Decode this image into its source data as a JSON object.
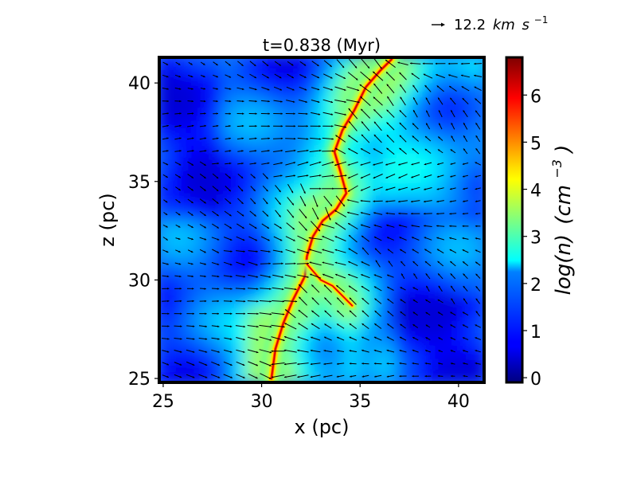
{
  "chart_data": {
    "type": "heatmap",
    "title": "t=0.838 (Myr)",
    "xlabel": "x (pc)",
    "ylabel": "z (pc)",
    "xlim": [
      24.8,
      41.3
    ],
    "ylim": [
      24.8,
      41.3
    ],
    "x_ticks": [
      25,
      30,
      35,
      40
    ],
    "y_ticks": [
      25,
      30,
      35,
      40
    ],
    "x_tick_labels": [
      "25",
      "30",
      "35",
      "40"
    ],
    "y_tick_labels": [
      "25",
      "30",
      "35",
      "40"
    ],
    "colorbar": {
      "label_main": "log(n)",
      "label_unit_base": "(cm",
      "label_unit_exp": "−3",
      "label_close": ")",
      "range": [
        -0.1,
        6.8
      ],
      "ticks": [
        0,
        1,
        2,
        3,
        4,
        5,
        6
      ],
      "tick_labels": [
        "0",
        "1",
        "2",
        "3",
        "4",
        "5",
        "6"
      ],
      "colormap": "jet"
    },
    "quiver_key": {
      "value_label": "12.2",
      "unit_base_1": "km",
      "unit_base_2": "s",
      "unit_exp": "−1"
    },
    "filament_ridge": [
      [
        30.5,
        25.0
      ],
      [
        30.7,
        26.5
      ],
      [
        31.1,
        27.8
      ],
      [
        31.6,
        29.0
      ],
      [
        32.2,
        30.2
      ],
      [
        32.3,
        31.2
      ],
      [
        32.6,
        32.2
      ],
      [
        33.1,
        33.0
      ],
      [
        33.8,
        33.6
      ],
      [
        34.3,
        34.4
      ],
      [
        34.0,
        35.5
      ],
      [
        33.7,
        36.5
      ],
      [
        34.1,
        37.6
      ],
      [
        34.7,
        38.6
      ],
      [
        35.3,
        39.8
      ],
      [
        36.0,
        40.6
      ],
      [
        36.6,
        41.2
      ]
    ],
    "filament_branch": [
      [
        32.3,
        30.8
      ],
      [
        33.0,
        30.0
      ],
      [
        33.6,
        29.7
      ],
      [
        34.1,
        29.2
      ],
      [
        34.6,
        28.7
      ]
    ],
    "background": {
      "type": "varying",
      "level_range": [
        0.5,
        3.5
      ]
    },
    "vector_field": {
      "description": "velocity arrows, converging toward filament",
      "max_speed_kms": 12.2
    }
  }
}
